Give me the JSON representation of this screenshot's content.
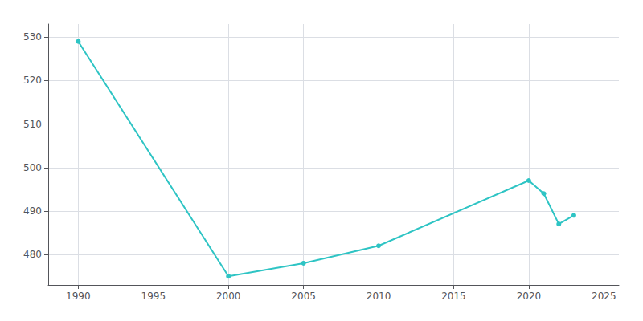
{
  "chart_data": {
    "type": "line",
    "x": [
      1990,
      2000,
      2005,
      2010,
      2020,
      2021,
      2022,
      2023
    ],
    "values": [
      529,
      475,
      478,
      482,
      497,
      494,
      487,
      489
    ],
    "color": "#2EC4C4",
    "marker": "circle",
    "xlim": [
      1988,
      2026
    ],
    "ylim": [
      473,
      533
    ],
    "xticks": [
      1990,
      1995,
      2000,
      2005,
      2010,
      2015,
      2020,
      2025
    ],
    "yticks": [
      480,
      490,
      500,
      510,
      520,
      530
    ],
    "grid": true
  }
}
